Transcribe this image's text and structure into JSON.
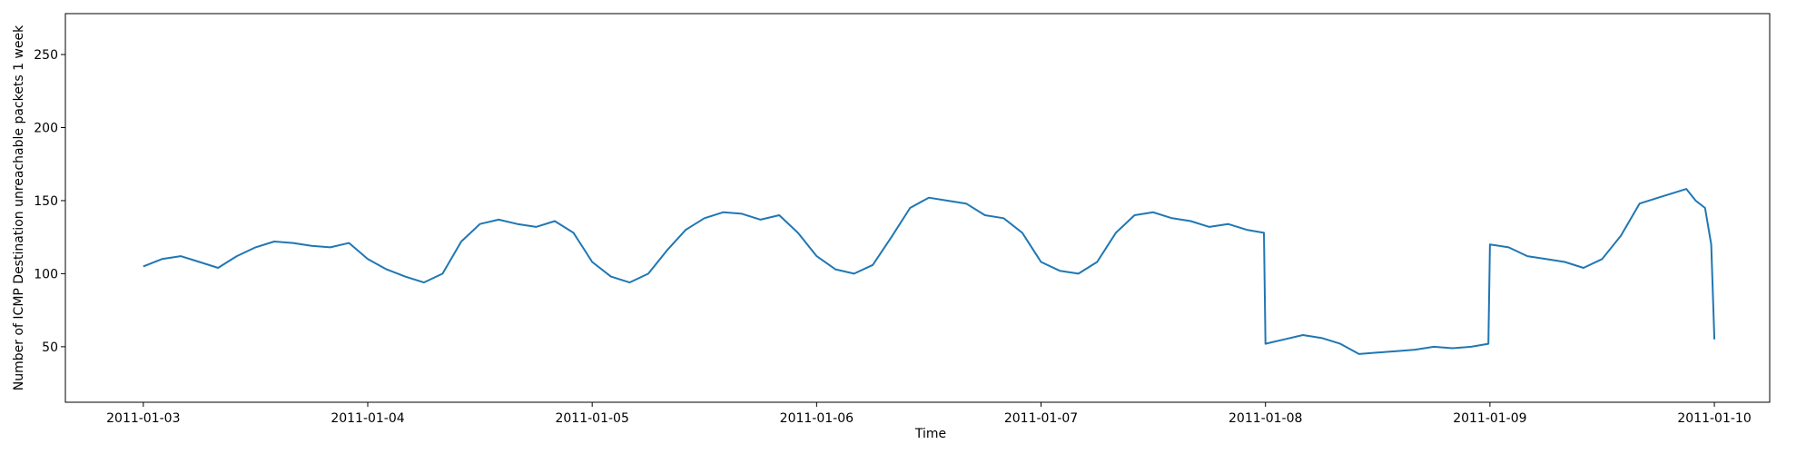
{
  "chart_data": {
    "type": "line",
    "title": "",
    "xlabel": "Time",
    "ylabel": "Number of ICMP Destination unreachable packets 1 week",
    "xlim": [
      "2011-01-02T15:40",
      "2011-01-10T05:55"
    ],
    "ylim": [
      12,
      278
    ],
    "grid": false,
    "legend": "none",
    "line_color": "#1f77b4",
    "x_ticks": [
      "2011-01-03",
      "2011-01-04",
      "2011-01-05",
      "2011-01-06",
      "2011-01-07",
      "2011-01-08",
      "2011-01-09",
      "2011-01-10"
    ],
    "y_ticks": [
      50,
      100,
      150,
      200,
      250
    ],
    "series": [
      {
        "x": [
          "2011-01-03T00:00",
          "2011-01-03T02:00",
          "2011-01-03T04:00",
          "2011-01-03T06:00",
          "2011-01-03T08:00",
          "2011-01-03T10:00",
          "2011-01-03T12:00",
          "2011-01-03T14:00",
          "2011-01-03T16:00",
          "2011-01-03T18:00",
          "2011-01-03T20:00",
          "2011-01-03T22:00",
          "2011-01-04T00:00",
          "2011-01-04T02:00",
          "2011-01-04T04:00",
          "2011-01-04T06:00",
          "2011-01-04T08:00",
          "2011-01-04T10:00",
          "2011-01-04T12:00",
          "2011-01-04T14:00",
          "2011-01-04T16:00",
          "2011-01-04T18:00",
          "2011-01-04T20:00",
          "2011-01-04T22:00",
          "2011-01-05T00:00",
          "2011-01-05T02:00",
          "2011-01-05T04:00",
          "2011-01-05T06:00",
          "2011-01-05T08:00",
          "2011-01-05T10:00",
          "2011-01-05T12:00",
          "2011-01-05T14:00",
          "2011-01-05T16:00",
          "2011-01-05T18:00",
          "2011-01-05T20:00",
          "2011-01-05T22:00",
          "2011-01-06T00:00",
          "2011-01-06T02:00",
          "2011-01-06T04:00",
          "2011-01-06T06:00",
          "2011-01-06T08:00",
          "2011-01-06T10:00",
          "2011-01-06T12:00",
          "2011-01-06T14:00",
          "2011-01-06T16:00",
          "2011-01-06T18:00",
          "2011-01-06T20:00",
          "2011-01-06T22:00",
          "2011-01-07T00:00",
          "2011-01-07T02:00",
          "2011-01-07T04:00",
          "2011-01-07T06:00",
          "2011-01-07T08:00",
          "2011-01-07T10:00",
          "2011-01-07T12:00",
          "2011-01-07T14:00",
          "2011-01-07T16:00",
          "2011-01-07T18:00",
          "2011-01-07T20:00",
          "2011-01-07T22:00",
          "2011-01-07T23:50",
          "2011-01-08T00:00",
          "2011-01-08T02:00",
          "2011-01-08T04:00",
          "2011-01-08T06:00",
          "2011-01-08T08:00",
          "2011-01-08T10:00",
          "2011-01-08T12:00",
          "2011-01-08T14:00",
          "2011-01-08T16:00",
          "2011-01-08T18:00",
          "2011-01-08T20:00",
          "2011-01-08T22:00",
          "2011-01-08T23:50",
          "2011-01-09T00:00",
          "2011-01-09T02:00",
          "2011-01-09T04:00",
          "2011-01-09T06:00",
          "2011-01-09T08:00",
          "2011-01-09T10:00",
          "2011-01-09T12:00",
          "2011-01-09T14:00",
          "2011-01-09T16:00",
          "2011-01-09T18:00",
          "2011-01-09T20:00",
          "2011-01-09T21:00",
          "2011-01-09T22:00",
          "2011-01-09T23:00",
          "2011-01-09T23:40",
          "2011-01-10T00:00"
        ],
        "y": [
          105,
          110,
          112,
          108,
          104,
          112,
          118,
          122,
          121,
          119,
          118,
          121,
          110,
          103,
          98,
          94,
          100,
          122,
          134,
          137,
          134,
          132,
          136,
          128,
          108,
          98,
          94,
          100,
          116,
          130,
          138,
          142,
          141,
          137,
          140,
          128,
          112,
          103,
          100,
          106,
          125,
          145,
          152,
          150,
          148,
          140,
          138,
          128,
          108,
          102,
          100,
          108,
          128,
          140,
          142,
          138,
          136,
          132,
          134,
          130,
          128,
          52,
          55,
          58,
          56,
          52,
          45,
          46,
          47,
          48,
          50,
          49,
          50,
          52,
          120,
          118,
          112,
          110,
          108,
          104,
          110,
          126,
          148,
          152,
          156,
          158,
          150,
          145,
          120,
          55
        ]
      }
    ]
  }
}
